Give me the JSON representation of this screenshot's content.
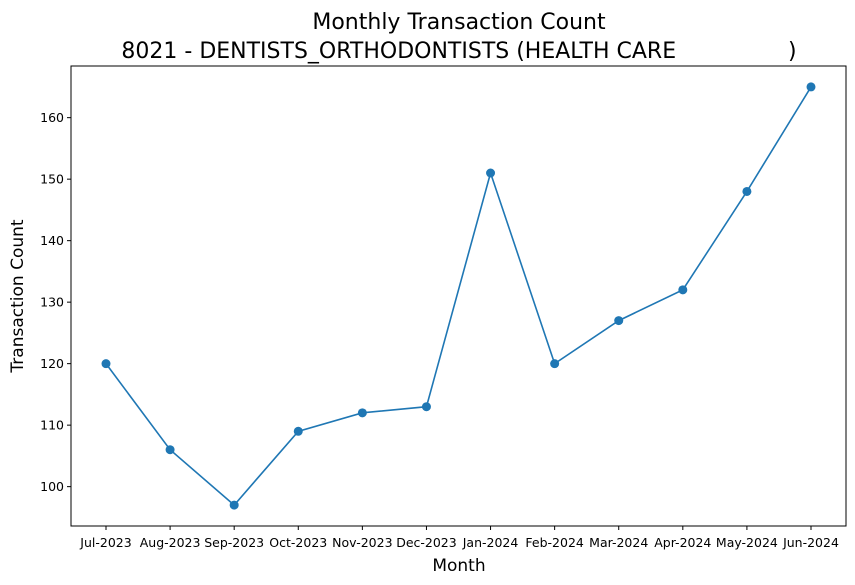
{
  "chart_data": {
    "type": "line",
    "title": "Monthly Transaction Count",
    "subtitle": "8021 - DENTISTS_ORTHODONTISTS (HEALTH CARE                )",
    "xlabel": "Month",
    "ylabel": "Transaction Count",
    "categories": [
      "Jul-2023",
      "Aug-2023",
      "Sep-2023",
      "Oct-2023",
      "Nov-2023",
      "Dec-2023",
      "Jan-2024",
      "Feb-2024",
      "Mar-2024",
      "Apr-2024",
      "May-2024",
      "Jun-2024"
    ],
    "values": [
      120,
      106,
      97,
      109,
      112,
      113,
      151,
      120,
      127,
      132,
      148,
      165
    ],
    "yticks": [
      100,
      110,
      120,
      130,
      140,
      150,
      160
    ],
    "ylim": [
      93.6,
      168.4
    ],
    "grid": false,
    "color": "#1f77b4"
  }
}
